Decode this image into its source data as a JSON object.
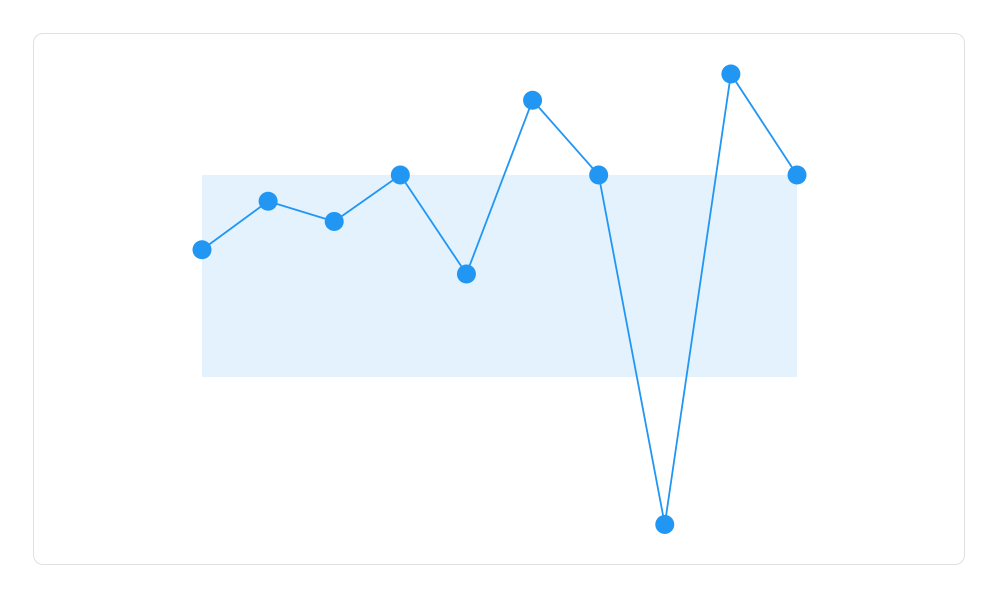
{
  "chart_data": {
    "type": "line",
    "title": "",
    "xlabel": "",
    "ylabel": "",
    "x": [
      1,
      2,
      3,
      4,
      5,
      6,
      7,
      8,
      9,
      10
    ],
    "series": [
      {
        "values": [
          63,
          87,
          77,
          100,
          51,
          137,
          100,
          -73,
          150,
          100
        ]
      }
    ],
    "reference_band": {
      "from": 0,
      "to": 100
    },
    "ylim": [
      -80,
      160
    ],
    "grid": false,
    "legend": "none",
    "colors": {
      "line": "#2196f3",
      "band": "#e3f2fd",
      "border": "#e0e0e0"
    }
  }
}
